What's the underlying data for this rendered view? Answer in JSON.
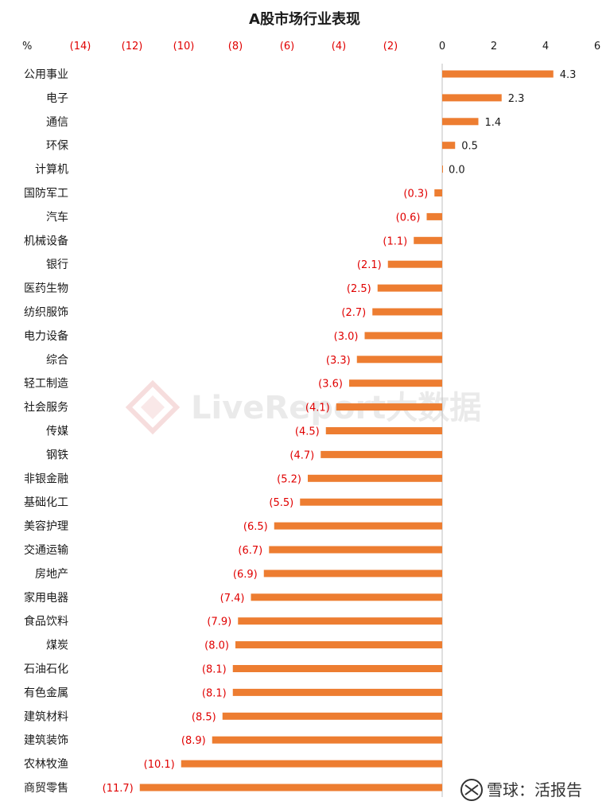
{
  "chart_data": {
    "type": "bar",
    "orientation": "horizontal",
    "title": "A股市场行业表现",
    "unit_label": "%",
    "xlim": [
      -16,
      6
    ],
    "x_ticks": [
      -14,
      -12,
      -10,
      -8,
      -6,
      -4,
      -2,
      0,
      2,
      4,
      6
    ],
    "x_tick_labels": [
      "(14)",
      "(12)",
      "(10)",
      "(8)",
      "(6)",
      "(4)",
      "(2)",
      "0",
      "2",
      "4",
      "6"
    ],
    "grid": false,
    "legend": "none",
    "categories": [
      "公用事业",
      "电子",
      "通信",
      "环保",
      "计算机",
      "国防军工",
      "汽车",
      "机械设备",
      "银行",
      "医药生物",
      "纺织服饰",
      "电力设备",
      "综合",
      "轻工制造",
      "社会服务",
      "传媒",
      "钢铁",
      "非银金融",
      "基础化工",
      "美容护理",
      "交通运输",
      "房地产",
      "家用电器",
      "食品饮料",
      "煤炭",
      "石油石化",
      "有色金属",
      "建筑材料",
      "建筑装饰",
      "农林牧渔",
      "商贸零售"
    ],
    "values": [
      4.3,
      2.3,
      1.4,
      0.5,
      0.0,
      -0.3,
      -0.6,
      -1.1,
      -2.1,
      -2.5,
      -2.7,
      -3.0,
      -3.3,
      -3.6,
      -4.1,
      -4.5,
      -4.7,
      -5.2,
      -5.5,
      -6.5,
      -6.7,
      -6.9,
      -7.4,
      -7.9,
      -8.0,
      -8.1,
      -8.1,
      -8.5,
      -8.9,
      -10.1,
      -11.7
    ],
    "value_labels": [
      "4.3",
      "2.3",
      "1.4",
      "0.5",
      "0.0",
      "(0.3)",
      "(0.6)",
      "(1.1)",
      "(2.1)",
      "(2.5)",
      "(2.7)",
      "(3.0)",
      "(3.3)",
      "(3.6)",
      "(4.1)",
      "(4.5)",
      "(4.7)",
      "(5.2)",
      "(5.5)",
      "(6.5)",
      "(6.7)",
      "(6.9)",
      "(7.4)",
      "(7.9)",
      "(8.0)",
      "(8.1)",
      "(8.1)",
      "(8.5)",
      "(8.9)",
      "(10.1)",
      "(11.7)"
    ]
  },
  "colors": {
    "bar": "#ed7d31",
    "negative_text": "#e00000",
    "positive_text": "#1a1a1a",
    "axis": "#bfbfbf"
  },
  "watermark": {
    "text": "LiveReport大数据",
    "icon": "livereport-logo-icon"
  },
  "footer": {
    "text": "雪球：活报告",
    "icon": "xueqiu-logo-icon"
  }
}
